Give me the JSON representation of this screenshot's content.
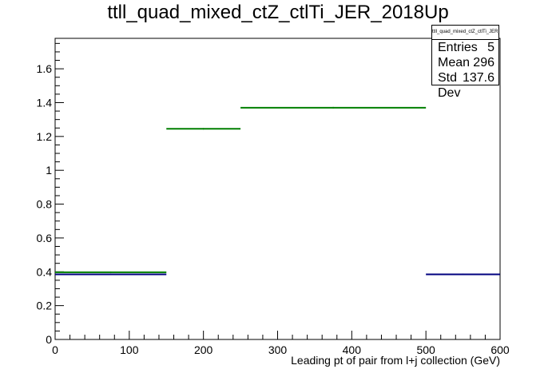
{
  "chart_data": {
    "type": "histogram",
    "title": "ttll_quad_mixed_ctZ_ctlTi_JER_2018Up",
    "xlabel": "Leading pt of pair from l+j collection (GeV)",
    "ylabel": "",
    "xlim": [
      0,
      600
    ],
    "ylim": [
      0,
      1.78
    ],
    "x_ticks": [
      0,
      100,
      200,
      300,
      400,
      500,
      600
    ],
    "y_ticks": [
      0,
      0.2,
      0.4,
      0.6,
      0.8,
      1,
      1.2,
      1.4,
      1.6
    ],
    "y_tick_labels": [
      "0",
      "0.2",
      "0.4",
      "0.6",
      "0.8",
      "1",
      "1.2",
      "1.4",
      "1.6"
    ],
    "grid": false,
    "series": [
      {
        "color": "#00007f",
        "bins": [
          {
            "x0": 0,
            "x1": 150,
            "value": 0.385
          },
          {
            "x0": 500,
            "x1": 600,
            "value": 0.385
          }
        ]
      },
      {
        "color": "#007f00",
        "bins": [
          {
            "x0": 0,
            "x1": 150,
            "value": 0.397
          },
          {
            "x0": 150,
            "x1": 250,
            "value": 1.245
          },
          {
            "x0": 250,
            "x1": 500,
            "value": 1.37
          }
        ]
      }
    ]
  },
  "stats": {
    "name": "ttll_quad_mixed_ctZ_ctlTi_JER_2018Up",
    "entries_label": "Entries",
    "entries_value": "5",
    "mean_label": "Mean",
    "mean_value": "296",
    "stddev_label": "Std Dev",
    "stddev_value": "137.6"
  }
}
